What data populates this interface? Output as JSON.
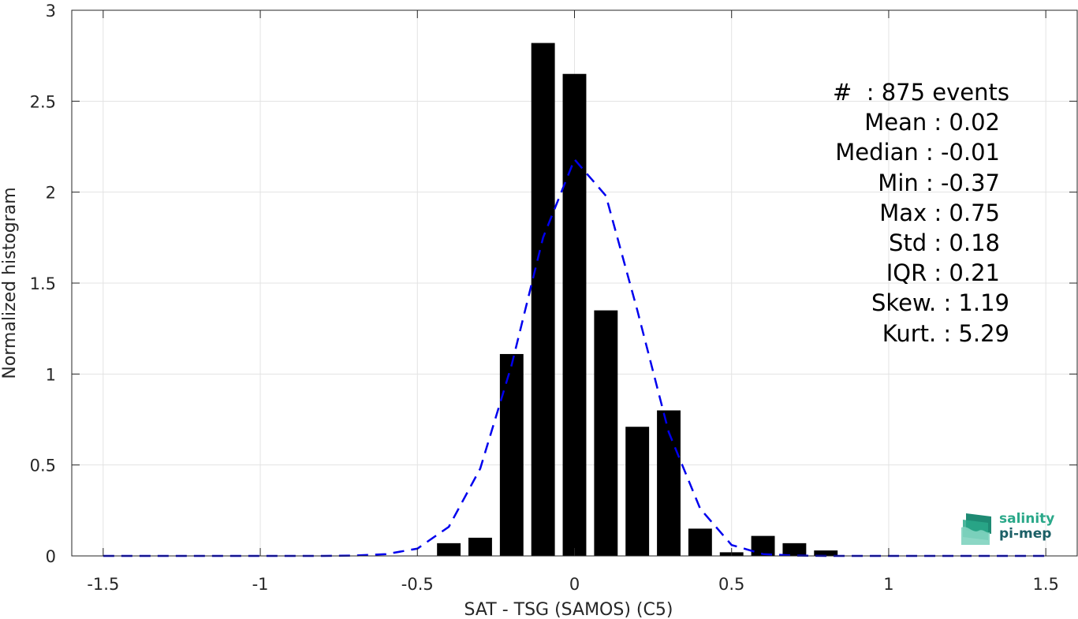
{
  "chart_data": {
    "type": "bar",
    "xlabel": "SAT - TSG (SAMOS) (C5)",
    "ylabel": "Normalized histogram",
    "xlim": [
      -1.6,
      1.6
    ],
    "ylim": [
      0,
      3
    ],
    "xticks": [
      -1.5,
      -1,
      -0.5,
      0,
      0.5,
      1,
      1.5
    ],
    "xtick_labels": [
      "-1.5",
      "-1",
      "-0.5",
      "0",
      "0.5",
      "1",
      "1.5"
    ],
    "yticks": [
      0,
      0.5,
      1,
      1.5,
      2,
      2.5,
      3
    ],
    "ytick_labels": [
      "0",
      "0.5",
      "1",
      "1.5",
      "2",
      "2.5",
      "3"
    ],
    "grid": true,
    "bar_color": "#000000",
    "bars": {
      "x": [
        -0.4,
        -0.3,
        -0.2,
        -0.1,
        0.0,
        0.1,
        0.2,
        0.3,
        0.4,
        0.5,
        0.6,
        0.7,
        0.8
      ],
      "values": [
        0.07,
        0.1,
        1.11,
        2.82,
        2.65,
        1.35,
        0.71,
        0.8,
        0.15,
        0.02,
        0.11,
        0.07,
        0.03
      ]
    },
    "fit_curve": {
      "style": "dashed",
      "color": "#0000ee",
      "x": [
        -1.5,
        -1.4,
        -1.3,
        -1.2,
        -1.1,
        -1.0,
        -0.9,
        -0.8,
        -0.7,
        -0.6,
        -0.5,
        -0.4,
        -0.3,
        -0.2,
        -0.1,
        0.0,
        0.1,
        0.2,
        0.3,
        0.4,
        0.5,
        0.6,
        0.7,
        0.8,
        0.9,
        1.0,
        1.1,
        1.2,
        1.3,
        1.4,
        1.5
      ],
      "y": [
        0,
        0,
        0,
        0,
        0,
        0,
        0,
        0,
        0.002,
        0.01,
        0.04,
        0.16,
        0.48,
        1.05,
        1.75,
        2.18,
        1.98,
        1.35,
        0.68,
        0.26,
        0.06,
        0.01,
        0.002,
        0,
        0,
        0,
        0,
        0,
        0,
        0,
        0
      ]
    },
    "stats": [
      "#  : 875 events",
      "Mean : 0.02",
      "Median : -0.01",
      "Min : -0.37",
      "Max : 0.75",
      "Std : 0.18",
      "IQR : 0.21",
      "Skew. : 1.19",
      "Kurt. : 5.29"
    ]
  },
  "logo": {
    "line1": "salinity",
    "line2": "pi-mep"
  }
}
